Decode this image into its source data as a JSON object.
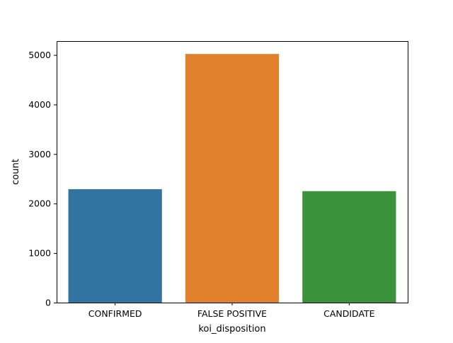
{
  "chart_data": {
    "type": "bar",
    "title": "",
    "xlabel": "koi_disposition",
    "ylabel": "count",
    "categories": [
      "CONFIRMED",
      "FALSE POSITIVE",
      "CANDIDATE"
    ],
    "values": [
      2290,
      5020,
      2250
    ],
    "colors": [
      "#3274a1",
      "#e1812c",
      "#3a923a"
    ],
    "ylim": [
      0,
      5280
    ],
    "yticks": [
      0,
      1000,
      2000,
      3000,
      4000,
      5000
    ],
    "ytick_labels": [
      "0",
      "1000",
      "2000",
      "3000",
      "4000",
      "5000"
    ],
    "grid": false,
    "legend": "none"
  }
}
